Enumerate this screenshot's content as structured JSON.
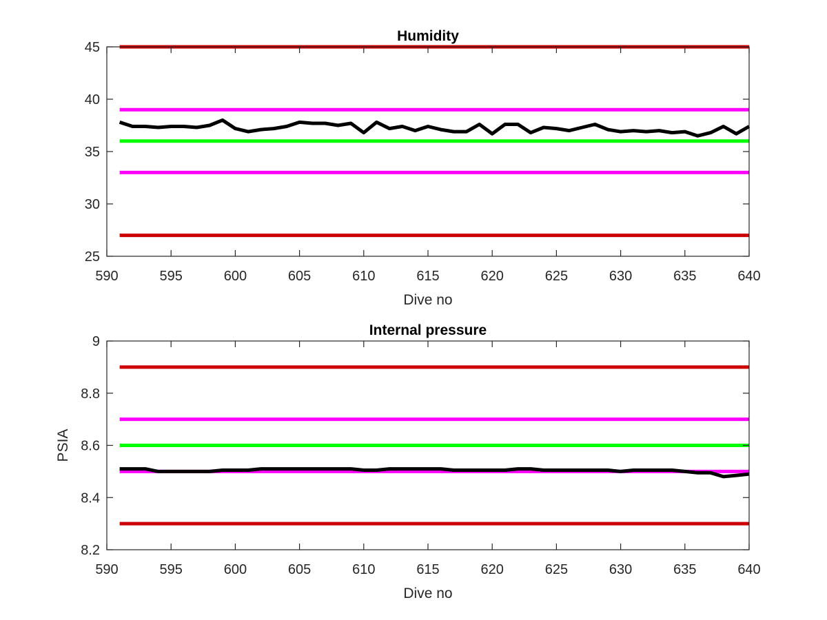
{
  "colors": {
    "red": "#cc0000",
    "magenta": "#ff00ff",
    "green": "#00ff00",
    "data_line": "#000000",
    "axis": "#262626"
  },
  "chart_data": [
    {
      "type": "line",
      "title": "Humidity",
      "xlabel": "Dive no",
      "ylabel": "",
      "xlim": [
        590,
        640
      ],
      "ylim": [
        25,
        45
      ],
      "xticks": [
        590,
        595,
        600,
        605,
        610,
        615,
        620,
        625,
        630,
        635,
        640
      ],
      "yticks": [
        25,
        30,
        35,
        40,
        45
      ],
      "grid": false,
      "box": true,
      "threshold_lines": [
        {
          "y": 45,
          "color": "#cc0000"
        },
        {
          "y": 39,
          "color": "#ff00ff"
        },
        {
          "y": 36,
          "color": "#00ff00"
        },
        {
          "y": 33,
          "color": "#ff00ff"
        },
        {
          "y": 27,
          "color": "#cc0000"
        }
      ],
      "series": [
        {
          "color": "#000000",
          "x": [
            591,
            592,
            593,
            594,
            595,
            596,
            597,
            598,
            599,
            600,
            601,
            602,
            603,
            604,
            605,
            606,
            607,
            608,
            609,
            610,
            611,
            612,
            613,
            614,
            615,
            616,
            617,
            618,
            619,
            620,
            621,
            622,
            623,
            624,
            625,
            626,
            627,
            628,
            629,
            630,
            631,
            632,
            633,
            634,
            635,
            636,
            637,
            638,
            639,
            640
          ],
          "y": [
            37.8,
            37.4,
            37.4,
            37.3,
            37.4,
            37.4,
            37.3,
            37.5,
            38.0,
            37.2,
            36.9,
            37.1,
            37.2,
            37.4,
            37.8,
            37.7,
            37.7,
            37.5,
            37.7,
            36.8,
            37.8,
            37.2,
            37.4,
            37.0,
            37.4,
            37.1,
            36.9,
            36.9,
            37.6,
            36.7,
            37.6,
            37.6,
            36.8,
            37.3,
            37.2,
            37.0,
            37.3,
            37.6,
            37.1,
            36.9,
            37.0,
            36.9,
            37.0,
            36.8,
            36.9,
            36.5,
            36.8,
            37.4,
            36.7,
            37.4
          ]
        }
      ]
    },
    {
      "type": "line",
      "title": "Internal pressure",
      "xlabel": "Dive no",
      "ylabel": "PSIA",
      "xlim": [
        590,
        640
      ],
      "ylim": [
        8.2,
        9
      ],
      "xticks": [
        590,
        595,
        600,
        605,
        610,
        615,
        620,
        625,
        630,
        635,
        640
      ],
      "yticks": [
        8.2,
        8.4,
        8.6,
        8.8,
        9
      ],
      "grid": false,
      "box": true,
      "threshold_lines": [
        {
          "y": 8.9,
          "color": "#cc0000"
        },
        {
          "y": 8.7,
          "color": "#ff00ff"
        },
        {
          "y": 8.6,
          "color": "#00ff00"
        },
        {
          "y": 8.5,
          "color": "#ff00ff"
        },
        {
          "y": 8.3,
          "color": "#cc0000"
        }
      ],
      "series": [
        {
          "color": "#000000",
          "x": [
            591,
            592,
            593,
            594,
            595,
            596,
            597,
            598,
            599,
            600,
            601,
            602,
            603,
            604,
            605,
            606,
            607,
            608,
            609,
            610,
            611,
            612,
            613,
            614,
            615,
            616,
            617,
            618,
            619,
            620,
            621,
            622,
            623,
            624,
            625,
            626,
            627,
            628,
            629,
            630,
            631,
            632,
            633,
            634,
            635,
            636,
            637,
            638,
            639,
            640
          ],
          "y": [
            8.51,
            8.51,
            8.51,
            8.5,
            8.5,
            8.5,
            8.5,
            8.5,
            8.505,
            8.505,
            8.505,
            8.51,
            8.51,
            8.51,
            8.51,
            8.51,
            8.51,
            8.51,
            8.51,
            8.505,
            8.505,
            8.51,
            8.51,
            8.51,
            8.51,
            8.51,
            8.505,
            8.505,
            8.505,
            8.505,
            8.505,
            8.51,
            8.51,
            8.505,
            8.505,
            8.505,
            8.505,
            8.505,
            8.505,
            8.5,
            8.505,
            8.505,
            8.505,
            8.505,
            8.5,
            8.495,
            8.495,
            8.48,
            8.485,
            8.49
          ]
        }
      ]
    }
  ]
}
